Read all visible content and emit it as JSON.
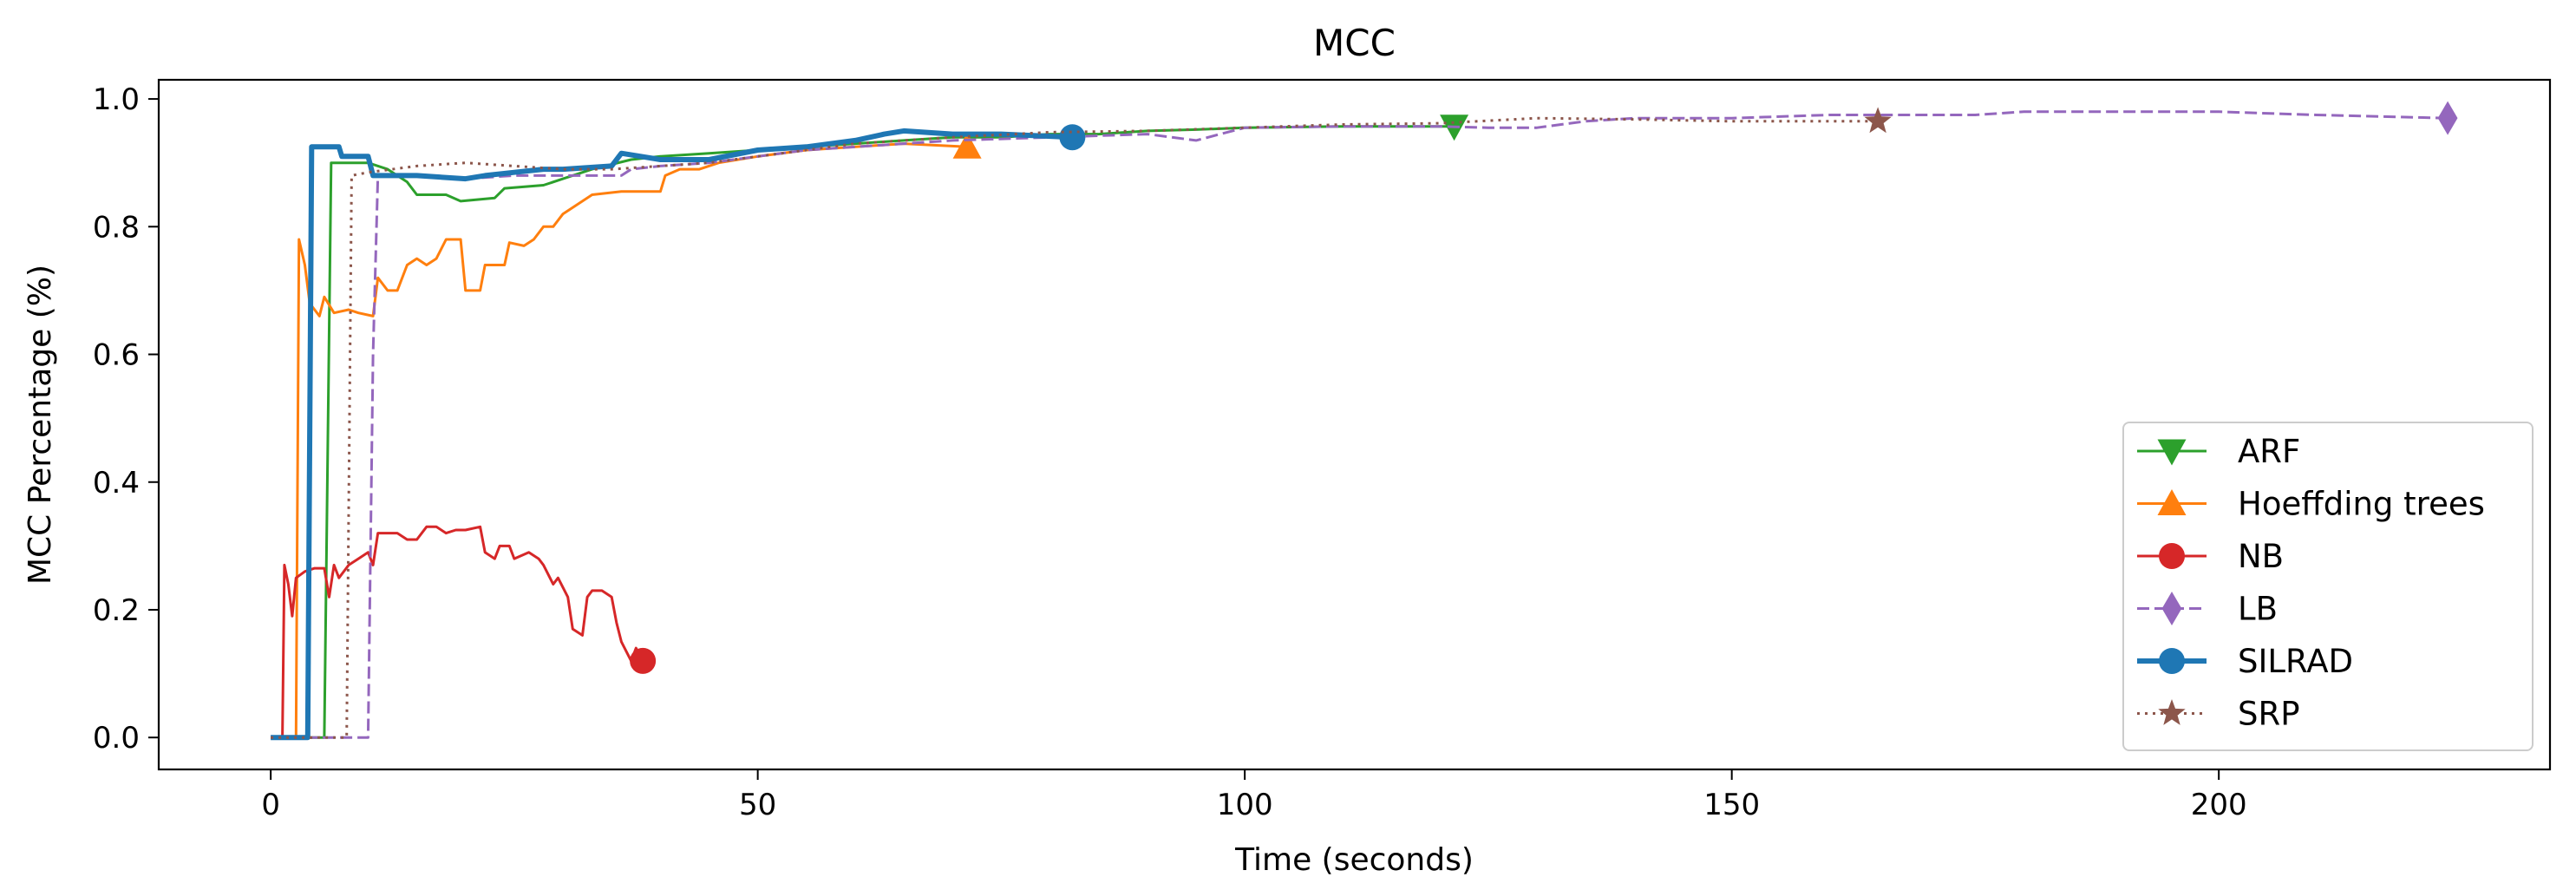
{
  "chart_data": {
    "type": "line",
    "title": "MCC",
    "xlabel": "Time (seconds)",
    "ylabel": "MCC Percentage (%)",
    "xlim": [
      -11.5,
      234
    ],
    "ylim": [
      -0.05,
      1.03
    ],
    "xticks": [
      0,
      50,
      100,
      150,
      200
    ],
    "yticks": [
      0.0,
      0.2,
      0.4,
      0.6,
      0.8,
      1.0
    ],
    "ytick_labels": [
      "0.0",
      "0.2",
      "0.4",
      "0.6",
      "0.8",
      "1.0"
    ],
    "grid": false,
    "legend_position": "lower-right",
    "series": [
      {
        "name": "ARF",
        "color": "#2ca02c",
        "marker": "triangle-down",
        "dash": "solid",
        "width": "normal",
        "points": [
          [
            0,
            0.0
          ],
          [
            5.5,
            0.0
          ],
          [
            6.2,
            0.9
          ],
          [
            10,
            0.9
          ],
          [
            12,
            0.89
          ],
          [
            14,
            0.87
          ],
          [
            15,
            0.85
          ],
          [
            18,
            0.85
          ],
          [
            19.5,
            0.84
          ],
          [
            23,
            0.845
          ],
          [
            24,
            0.86
          ],
          [
            28,
            0.865
          ],
          [
            30,
            0.875
          ],
          [
            33,
            0.89
          ],
          [
            37,
            0.905
          ],
          [
            40,
            0.91
          ],
          [
            45,
            0.915
          ],
          [
            50,
            0.92
          ],
          [
            55,
            0.925
          ],
          [
            60,
            0.93
          ],
          [
            65,
            0.935
          ],
          [
            70,
            0.94
          ],
          [
            75,
            0.94
          ],
          [
            80,
            0.945
          ],
          [
            85,
            0.945
          ],
          [
            90,
            0.95
          ],
          [
            95,
            0.952
          ],
          [
            100,
            0.955
          ],
          [
            110,
            0.957
          ],
          [
            121.5,
            0.957
          ]
        ]
      },
      {
        "name": "Hoeffding trees",
        "color": "#ff7f0e",
        "marker": "triangle-up",
        "dash": "solid",
        "width": "normal",
        "points": [
          [
            0,
            0.0
          ],
          [
            2.6,
            0.0
          ],
          [
            2.9,
            0.78
          ],
          [
            3.5,
            0.74
          ],
          [
            4,
            0.68
          ],
          [
            5,
            0.66
          ],
          [
            5.5,
            0.69
          ],
          [
            6.5,
            0.665
          ],
          [
            8,
            0.67
          ],
          [
            9,
            0.665
          ],
          [
            10.5,
            0.66
          ],
          [
            11,
            0.72
          ],
          [
            12,
            0.7
          ],
          [
            13,
            0.7
          ],
          [
            14,
            0.74
          ],
          [
            15,
            0.75
          ],
          [
            16,
            0.74
          ],
          [
            17,
            0.75
          ],
          [
            18,
            0.78
          ],
          [
            19.5,
            0.78
          ],
          [
            20,
            0.7
          ],
          [
            21.5,
            0.7
          ],
          [
            22,
            0.74
          ],
          [
            24,
            0.74
          ],
          [
            24.5,
            0.775
          ],
          [
            26,
            0.77
          ],
          [
            27,
            0.78
          ],
          [
            28,
            0.8
          ],
          [
            29,
            0.8
          ],
          [
            30,
            0.82
          ],
          [
            31,
            0.83
          ],
          [
            32,
            0.84
          ],
          [
            33,
            0.85
          ],
          [
            36,
            0.855
          ],
          [
            40,
            0.855
          ],
          [
            40.5,
            0.88
          ],
          [
            42,
            0.89
          ],
          [
            44,
            0.89
          ],
          [
            46,
            0.9
          ],
          [
            50,
            0.91
          ],
          [
            55,
            0.92
          ],
          [
            60,
            0.925
          ],
          [
            65,
            0.93
          ],
          [
            71.5,
            0.925
          ]
        ]
      },
      {
        "name": "NB",
        "color": "#d62728",
        "marker": "circle",
        "dash": "solid",
        "width": "normal",
        "points": [
          [
            0,
            0.0
          ],
          [
            1.2,
            0.0
          ],
          [
            1.4,
            0.27
          ],
          [
            1.8,
            0.24
          ],
          [
            2.2,
            0.19
          ],
          [
            2.6,
            0.25
          ],
          [
            3.5,
            0.26
          ],
          [
            4.5,
            0.265
          ],
          [
            5.5,
            0.265
          ],
          [
            6,
            0.22
          ],
          [
            6.5,
            0.27
          ],
          [
            7,
            0.25
          ],
          [
            8,
            0.27
          ],
          [
            9,
            0.28
          ],
          [
            10,
            0.29
          ],
          [
            10.5,
            0.27
          ],
          [
            11,
            0.32
          ],
          [
            12,
            0.32
          ],
          [
            13,
            0.32
          ],
          [
            14,
            0.31
          ],
          [
            15,
            0.31
          ],
          [
            16,
            0.33
          ],
          [
            17,
            0.33
          ],
          [
            18,
            0.32
          ],
          [
            19,
            0.325
          ],
          [
            20,
            0.325
          ],
          [
            21.5,
            0.33
          ],
          [
            22,
            0.29
          ],
          [
            23,
            0.28
          ],
          [
            23.5,
            0.3
          ],
          [
            24.5,
            0.3
          ],
          [
            25,
            0.28
          ],
          [
            26.5,
            0.29
          ],
          [
            27.5,
            0.28
          ],
          [
            28,
            0.27
          ],
          [
            29,
            0.24
          ],
          [
            29.5,
            0.25
          ],
          [
            30.5,
            0.22
          ],
          [
            31,
            0.17
          ],
          [
            32,
            0.16
          ],
          [
            32.5,
            0.22
          ],
          [
            33,
            0.23
          ],
          [
            34,
            0.23
          ],
          [
            35,
            0.22
          ],
          [
            35.5,
            0.18
          ],
          [
            36,
            0.15
          ],
          [
            37,
            0.12
          ],
          [
            37.5,
            0.14
          ],
          [
            38.2,
            0.12
          ]
        ]
      },
      {
        "name": "LB",
        "color": "#9467bd",
        "marker": "diamond",
        "dash": "dashed",
        "width": "normal",
        "points": [
          [
            0,
            0.0
          ],
          [
            10,
            0.0
          ],
          [
            10.5,
            0.6
          ],
          [
            11,
            0.88
          ],
          [
            15,
            0.88
          ],
          [
            20,
            0.875
          ],
          [
            25,
            0.88
          ],
          [
            30,
            0.88
          ],
          [
            36,
            0.88
          ],
          [
            37,
            0.89
          ],
          [
            40,
            0.895
          ],
          [
            45,
            0.9
          ],
          [
            50,
            0.91
          ],
          [
            55,
            0.92
          ],
          [
            60,
            0.925
          ],
          [
            65,
            0.93
          ],
          [
            70,
            0.935
          ],
          [
            80,
            0.94
          ],
          [
            90,
            0.945
          ],
          [
            95,
            0.935
          ],
          [
            100,
            0.955
          ],
          [
            110,
            0.957
          ],
          [
            120,
            0.957
          ],
          [
            125,
            0.955
          ],
          [
            130,
            0.955
          ],
          [
            135,
            0.965
          ],
          [
            140,
            0.97
          ],
          [
            150,
            0.97
          ],
          [
            160,
            0.975
          ],
          [
            170,
            0.975
          ],
          [
            175,
            0.975
          ],
          [
            180,
            0.98
          ],
          [
            190,
            0.98
          ],
          [
            200,
            0.98
          ],
          [
            210,
            0.975
          ],
          [
            223.5,
            0.97
          ]
        ]
      },
      {
        "name": "SILRAD",
        "color": "#1f77b4",
        "marker": "circle",
        "dash": "solid",
        "width": "thick",
        "points": [
          [
            0,
            0.0
          ],
          [
            3.8,
            0.0
          ],
          [
            4.2,
            0.925
          ],
          [
            7,
            0.925
          ],
          [
            7.3,
            0.91
          ],
          [
            10,
            0.91
          ],
          [
            10.5,
            0.88
          ],
          [
            15,
            0.88
          ],
          [
            20,
            0.875
          ],
          [
            22,
            0.88
          ],
          [
            25,
            0.885
          ],
          [
            28,
            0.89
          ],
          [
            30,
            0.89
          ],
          [
            35,
            0.895
          ],
          [
            36,
            0.915
          ],
          [
            38,
            0.91
          ],
          [
            40,
            0.905
          ],
          [
            45,
            0.905
          ],
          [
            50,
            0.92
          ],
          [
            55,
            0.925
          ],
          [
            60,
            0.935
          ],
          [
            63,
            0.945
          ],
          [
            65,
            0.95
          ],
          [
            70,
            0.945
          ],
          [
            75,
            0.945
          ],
          [
            82.3,
            0.94
          ]
        ]
      },
      {
        "name": "SRP",
        "color": "#8c564b",
        "marker": "star",
        "dash": "dotted",
        "width": "normal",
        "points": [
          [
            0,
            0.0
          ],
          [
            7.8,
            0.0
          ],
          [
            8.3,
            0.88
          ],
          [
            10,
            0.885
          ],
          [
            15,
            0.895
          ],
          [
            20,
            0.9
          ],
          [
            25,
            0.895
          ],
          [
            30,
            0.89
          ],
          [
            35,
            0.89
          ],
          [
            40,
            0.895
          ],
          [
            45,
            0.9
          ],
          [
            50,
            0.91
          ],
          [
            55,
            0.92
          ],
          [
            60,
            0.93
          ],
          [
            70,
            0.94
          ],
          [
            80,
            0.948
          ],
          [
            90,
            0.95
          ],
          [
            100,
            0.955
          ],
          [
            110,
            0.96
          ],
          [
            120,
            0.962
          ],
          [
            130,
            0.97
          ],
          [
            140,
            0.968
          ],
          [
            150,
            0.965
          ],
          [
            160,
            0.965
          ],
          [
            165,
            0.965
          ]
        ]
      }
    ]
  }
}
